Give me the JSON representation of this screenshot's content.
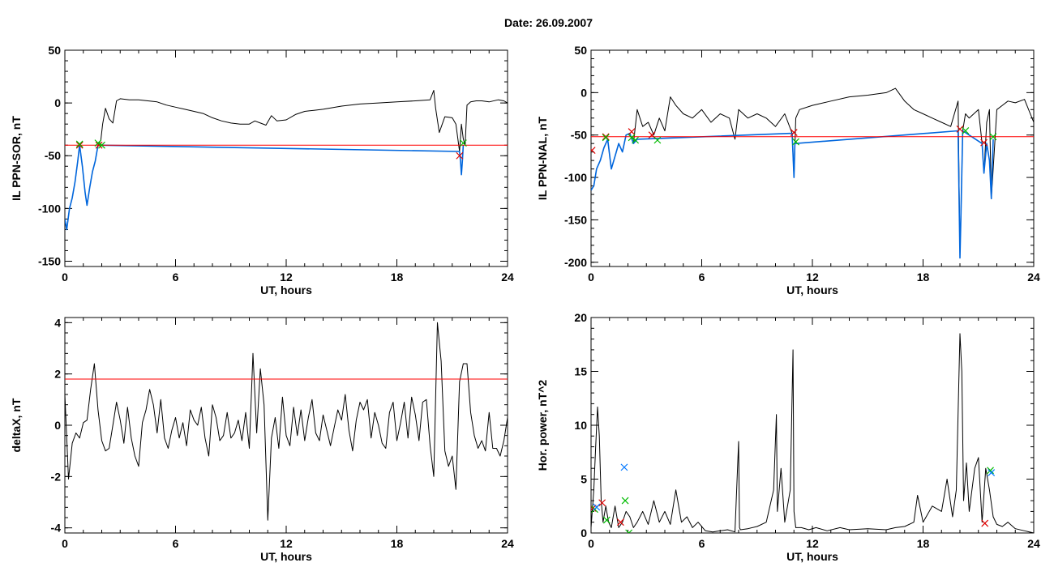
{
  "title": "Date:  26.09.2007",
  "colors": {
    "trace": "#000000",
    "threshold": "#ff0000",
    "highlight": "#0066dd",
    "start_marker": "#dd0000",
    "end_marker": "#00bb00",
    "peak_marker": "#0077ff"
  },
  "chart_data": [
    {
      "type": "line",
      "id": "ppn-sor",
      "xlabel": "UT, hours",
      "ylabel": "IL PPN-SOR, nT",
      "xlim": [
        0,
        24
      ],
      "ylim": [
        -155,
        50
      ],
      "xticks": [
        "0",
        "6",
        "12",
        "18",
        "24"
      ],
      "yticks": [
        "50",
        "0",
        "-50",
        "-100",
        "-150"
      ],
      "ytick_values": [
        50,
        0,
        -50,
        -100,
        -150
      ],
      "threshold": -40,
      "series": [
        {
          "style": "black",
          "x": [
            0,
            0.1,
            0.25,
            0.4,
            0.55,
            0.7,
            0.8,
            0.95,
            1.1,
            1.2,
            1.35,
            1.5,
            1.65,
            1.8,
            1.95,
            2.05,
            2.2,
            2.4,
            2.6,
            2.8,
            3.0,
            3.5,
            4.0,
            4.5,
            5.0,
            5.5,
            6.0,
            6.5,
            7.0,
            7.5,
            8.0,
            8.5,
            9.0,
            9.5,
            10.0,
            10.3,
            10.6,
            10.9,
            11.2,
            11.5,
            12.0,
            12.5,
            13.0,
            13.5,
            14.0,
            15.0,
            16.0,
            17.0,
            18.0,
            19.0,
            19.8,
            20.0,
            20.1,
            20.3,
            20.6,
            21.0,
            21.2,
            21.4,
            21.5,
            21.6,
            21.7,
            21.8,
            22.0,
            22.3,
            22.6,
            23.0,
            23.5,
            23.8,
            24.0
          ],
          "y": [
            -110,
            -120,
            -100,
            -90,
            -75,
            -55,
            -40,
            -60,
            -85,
            -97,
            -80,
            -65,
            -55,
            -40,
            -35,
            -20,
            -5,
            -15,
            -19,
            2,
            4,
            3,
            3,
            2,
            1,
            -2,
            -4,
            -6,
            -8,
            -10,
            -14,
            -17,
            -19,
            -20,
            -20,
            -17,
            -19,
            -21,
            -12,
            -17,
            -16,
            -11,
            -8,
            -7,
            -6,
            -3,
            -1,
            0,
            1,
            2,
            3,
            12,
            -5,
            -28,
            -13,
            -14,
            -20,
            -46,
            -20,
            -34,
            -40,
            -2,
            1,
            2,
            2,
            1,
            3,
            2,
            0
          ]
        },
        {
          "style": "blue",
          "x": [
            0,
            0.1,
            0.25,
            0.4,
            0.55,
            0.7,
            0.8,
            0.95,
            1.1,
            1.2,
            1.35,
            1.5,
            1.65,
            1.8,
            21.4,
            21.45,
            21.5,
            21.55,
            21.6
          ],
          "y": [
            -110,
            -120,
            -100,
            -90,
            -75,
            -55,
            -40,
            -60,
            -85,
            -97,
            -80,
            -65,
            -55,
            -40,
            -46,
            -55,
            -68,
            -55,
            -40
          ]
        }
      ],
      "start_markers": [
        {
          "x": 0.8,
          "y": -40
        },
        {
          "x": 1.85,
          "y": -40
        },
        {
          "x": 21.4,
          "y": -50
        }
      ],
      "end_markers": [
        {
          "x": 0.8,
          "y": -39
        },
        {
          "x": 1.8,
          "y": -38
        },
        {
          "x": 2.0,
          "y": -40
        },
        {
          "x": 21.6,
          "y": -38
        }
      ]
    },
    {
      "type": "line",
      "id": "ppn-nal",
      "xlabel": "UT, hours",
      "ylabel": "IL PPN-NAL, nT",
      "xlim": [
        0,
        24
      ],
      "ylim": [
        -205,
        50
      ],
      "xticks": [
        "0",
        "6",
        "12",
        "18",
        "24"
      ],
      "yticks": [
        "50",
        "0",
        "-50",
        "-100",
        "-150",
        "-200"
      ],
      "ytick_values": [
        50,
        0,
        -50,
        -100,
        -150,
        -200
      ],
      "threshold": -52,
      "series": [
        {
          "style": "black",
          "x": [
            0,
            0.15,
            0.3,
            0.5,
            0.7,
            0.9,
            1.1,
            1.3,
            1.5,
            1.7,
            1.9,
            2.1,
            2.3,
            2.5,
            2.8,
            3.1,
            3.4,
            3.7,
            4.0,
            4.3,
            4.6,
            5.0,
            5.5,
            6.0,
            6.5,
            7.0,
            7.5,
            7.8,
            8.0,
            8.5,
            9.0,
            9.5,
            10.0,
            10.5,
            10.9,
            11.0,
            11.1,
            11.3,
            12.0,
            13.0,
            14.0,
            15.0,
            16.0,
            16.5,
            17.0,
            17.5,
            18.0,
            18.5,
            19.0,
            19.5,
            19.9,
            20.0,
            20.05,
            20.15,
            20.3,
            20.5,
            21.0,
            21.2,
            21.3,
            21.45,
            21.6,
            21.7,
            21.8,
            22.0,
            22.3,
            22.6,
            23.0,
            23.5,
            24.0
          ],
          "y": [
            -115,
            -110,
            -90,
            -80,
            -65,
            -55,
            -90,
            -75,
            -60,
            -70,
            -50,
            -48,
            -60,
            -20,
            -40,
            -35,
            -50,
            -30,
            -45,
            -5,
            -15,
            -25,
            -30,
            -20,
            -35,
            -25,
            -30,
            -55,
            -20,
            -30,
            -25,
            -30,
            -40,
            -25,
            -48,
            -100,
            -30,
            -20,
            -15,
            -10,
            -5,
            -3,
            0,
            5,
            -10,
            -20,
            -25,
            -30,
            -35,
            -40,
            -10,
            -185,
            -150,
            -45,
            -25,
            -30,
            -20,
            -60,
            -95,
            -35,
            -20,
            -125,
            -90,
            -20,
            -15,
            -10,
            -12,
            -8,
            -35
          ]
        },
        {
          "style": "blue",
          "x": [
            0,
            0.15,
            0.3,
            0.5,
            0.7,
            0.9,
            1.1,
            1.3,
            1.5,
            1.7,
            1.9,
            2.1,
            2.3,
            2.5,
            10.9,
            11.0,
            11.05,
            19.9,
            20.0,
            20.05,
            20.15,
            21.2,
            21.3,
            21.45,
            21.6,
            21.7,
            21.8
          ],
          "y": [
            -115,
            -110,
            -90,
            -80,
            -65,
            -55,
            -90,
            -75,
            -60,
            -70,
            -50,
            -48,
            -60,
            -55,
            -48,
            -100,
            -60,
            -45,
            -195,
            -150,
            -45,
            -60,
            -95,
            -60,
            -80,
            -125,
            -55
          ]
        }
      ],
      "start_markers": [
        {
          "x": 0.05,
          "y": -68
        },
        {
          "x": 0.8,
          "y": -52
        },
        {
          "x": 2.2,
          "y": -46
        },
        {
          "x": 3.3,
          "y": -50
        },
        {
          "x": 11.0,
          "y": -47
        },
        {
          "x": 20.0,
          "y": -43
        },
        {
          "x": 21.3,
          "y": -59
        }
      ],
      "end_markers": [
        {
          "x": 0.8,
          "y": -53
        },
        {
          "x": 2.2,
          "y": -53
        },
        {
          "x": 2.4,
          "y": -56
        },
        {
          "x": 3.6,
          "y": -56
        },
        {
          "x": 11.1,
          "y": -58
        },
        {
          "x": 20.3,
          "y": -45
        },
        {
          "x": 21.8,
          "y": -52
        }
      ]
    },
    {
      "type": "line",
      "id": "deltax",
      "xlabel": "UT, hours",
      "ylabel": "deltaX, nT",
      "xlim": [
        0,
        24
      ],
      "ylim": [
        -4.2,
        4.2
      ],
      "xticks": [
        "0",
        "6",
        "12",
        "18",
        "24"
      ],
      "yticks": [
        "4",
        "2",
        "0",
        "-2",
        "-4"
      ],
      "ytick_values": [
        4,
        2,
        0,
        -2,
        -4
      ],
      "threshold": 1.8,
      "series": [
        {
          "style": "black",
          "x": [
            0,
            0.2,
            0.4,
            0.6,
            0.8,
            1.0,
            1.2,
            1.4,
            1.6,
            1.8,
            2.0,
            2.2,
            2.4,
            2.6,
            2.8,
            3.0,
            3.2,
            3.4,
            3.6,
            3.8,
            4.0,
            4.2,
            4.4,
            4.6,
            4.8,
            5.0,
            5.2,
            5.4,
            5.6,
            5.8,
            6.0,
            6.2,
            6.4,
            6.6,
            6.8,
            7.0,
            7.2,
            7.4,
            7.6,
            7.8,
            8.0,
            8.2,
            8.4,
            8.6,
            8.8,
            9.0,
            9.2,
            9.4,
            9.6,
            9.8,
            10.0,
            10.2,
            10.4,
            10.6,
            10.8,
            11.0,
            11.2,
            11.4,
            11.6,
            11.8,
            12.0,
            12.2,
            12.4,
            12.6,
            12.8,
            13.0,
            13.2,
            13.4,
            13.6,
            13.8,
            14.0,
            14.2,
            14.4,
            14.6,
            14.8,
            15.0,
            15.2,
            15.4,
            15.6,
            15.8,
            16.0,
            16.2,
            16.4,
            16.6,
            16.8,
            17.0,
            17.2,
            17.4,
            17.6,
            17.8,
            18.0,
            18.2,
            18.4,
            18.6,
            18.8,
            19.0,
            19.2,
            19.4,
            19.6,
            19.8,
            20.0,
            20.2,
            20.4,
            20.6,
            20.8,
            21.0,
            21.2,
            21.4,
            21.6,
            21.8,
            22.0,
            22.2,
            22.4,
            22.6,
            22.8,
            23.0,
            23.2,
            23.4,
            23.6,
            23.8,
            24.0
          ],
          "y": [
            1.2,
            -2.1,
            -0.7,
            -0.3,
            -0.5,
            0.1,
            0.2,
            1.4,
            2.4,
            0.6,
            -0.6,
            -1.0,
            -0.9,
            0.0,
            0.9,
            0.2,
            -0.7,
            0.7,
            -0.5,
            -1.2,
            -1.6,
            0.1,
            0.6,
            1.4,
            0.8,
            -0.3,
            1.0,
            -0.5,
            -0.9,
            -0.2,
            0.3,
            -0.5,
            0.1,
            -0.8,
            0.6,
            0.2,
            0.0,
            0.7,
            -0.5,
            -1.2,
            0.8,
            0.3,
            -0.6,
            -0.4,
            0.5,
            -0.5,
            -0.3,
            0.2,
            -0.6,
            0.5,
            -0.9,
            2.8,
            -0.3,
            2.2,
            0.8,
            -3.7,
            -0.5,
            0.3,
            -0.9,
            1.1,
            -0.4,
            -0.8,
            0.7,
            -0.4,
            0.6,
            -0.6,
            0.3,
            1.0,
            -0.3,
            -0.6,
            0.4,
            -0.2,
            -0.8,
            -0.1,
            0.6,
            0.2,
            1.2,
            -0.2,
            -1.0,
            0.2,
            0.9,
            0.6,
            1.0,
            -0.5,
            0.5,
            0.0,
            -0.7,
            -0.9,
            0.5,
            0.9,
            -0.6,
            0.1,
            0.9,
            -0.5,
            1.1,
            0.4,
            -0.6,
            0.9,
            1.0,
            -0.8,
            -2.0,
            4.0,
            2.5,
            -1.0,
            -1.6,
            -1.2,
            -2.5,
            1.7,
            2.4,
            2.4,
            0.5,
            -0.4,
            -0.9,
            -0.6,
            -1.0,
            0.5,
            -0.9,
            -0.9,
            -1.2,
            -0.6,
            0.3
          ]
        }
      ]
    },
    {
      "type": "line",
      "id": "hor-power",
      "xlabel": "UT, hours",
      "ylabel": "Hor. power, nT^2",
      "xlim": [
        0,
        24
      ],
      "ylim": [
        0,
        20
      ],
      "xticks": [
        "0",
        "6",
        "12",
        "18",
        "24"
      ],
      "yticks": [
        "20",
        "15",
        "10",
        "5",
        "0"
      ],
      "ytick_values": [
        20,
        15,
        10,
        5,
        0
      ],
      "series": [
        {
          "style": "black",
          "x": [
            0,
            0.15,
            0.25,
            0.35,
            0.45,
            0.55,
            0.65,
            0.8,
            0.95,
            1.1,
            1.3,
            1.5,
            1.7,
            1.9,
            2.1,
            2.3,
            2.5,
            2.8,
            3.1,
            3.4,
            3.7,
            4.0,
            4.3,
            4.6,
            4.9,
            5.2,
            5.5,
            5.8,
            6.2,
            6.6,
            7.0,
            7.4,
            7.8,
            8.0,
            8.05,
            8.1,
            8.5,
            9.0,
            9.5,
            9.9,
            10.05,
            10.1,
            10.3,
            10.5,
            10.8,
            10.95,
            11.0,
            11.1,
            11.4,
            11.8,
            12.2,
            12.8,
            13.5,
            14.0,
            15.0,
            16.0,
            16.5,
            17.0,
            17.5,
            17.7,
            18.0,
            18.5,
            19.0,
            19.3,
            19.6,
            19.8,
            20.0,
            20.1,
            20.2,
            20.35,
            20.5,
            20.8,
            21.0,
            21.2,
            21.4,
            21.6,
            21.8,
            22.0,
            22.3,
            22.6,
            23.0,
            23.5,
            24.0
          ],
          "y": [
            0.5,
            4.0,
            8.0,
            11.7,
            9.0,
            3.0,
            1.0,
            2.5,
            1.0,
            0.5,
            2.5,
            0.5,
            1.0,
            2.0,
            1.5,
            0.5,
            1.0,
            2.0,
            0.8,
            3.0,
            1.0,
            2.0,
            0.8,
            4.0,
            1.0,
            1.5,
            0.5,
            1.0,
            0.2,
            0.1,
            0.2,
            0.3,
            0.1,
            8.5,
            0.5,
            0.3,
            0.4,
            0.6,
            1.0,
            4.0,
            11.0,
            2.0,
            6.0,
            1.0,
            4.0,
            17.0,
            2.0,
            0.5,
            0.5,
            0.3,
            0.5,
            0.2,
            0.5,
            0.3,
            0.4,
            0.3,
            0.5,
            0.6,
            1.0,
            3.5,
            1.0,
            2.5,
            2.0,
            5.0,
            1.5,
            4.0,
            18.5,
            15.0,
            3.0,
            6.5,
            2.0,
            6.0,
            7.0,
            1.0,
            6.0,
            4.0,
            1.5,
            0.8,
            0.6,
            1.0,
            0.4,
            0.2,
            0.0
          ]
        }
      ],
      "start_markers": [
        {
          "x": 0.1,
          "y": 2.3
        },
        {
          "x": 0.6,
          "y": 2.8
        },
        {
          "x": 1.6,
          "y": 1.0
        },
        {
          "x": 21.35,
          "y": 0.9
        }
      ],
      "end_markers": [
        {
          "x": 0.2,
          "y": 2.2
        },
        {
          "x": 0.85,
          "y": 1.2
        },
        {
          "x": 1.85,
          "y": 3.0
        },
        {
          "x": 2.05,
          "y": 0.0
        },
        {
          "x": 21.65,
          "y": 5.8
        }
      ],
      "peak_markers": [
        {
          "x": 0.3,
          "y": 2.4
        },
        {
          "x": 1.8,
          "y": 6.1
        },
        {
          "x": 21.7,
          "y": 5.6
        }
      ]
    }
  ]
}
